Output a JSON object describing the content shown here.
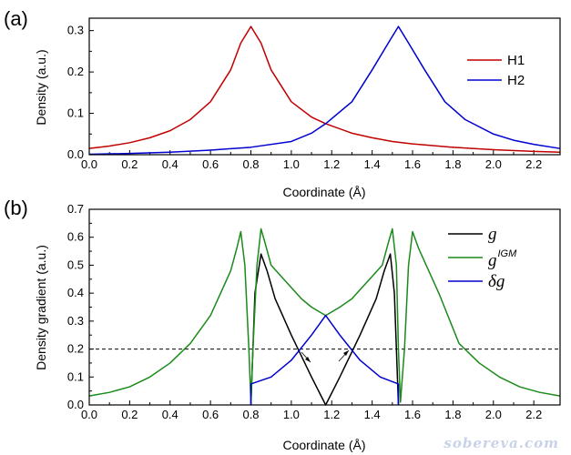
{
  "watermark": "sobereva.com",
  "chart_data": [
    {
      "panel": "(a)",
      "type": "line",
      "xlabel": "Coordinate (Å)",
      "ylabel": "Density (a.u.)",
      "xlim": [
        0.0,
        2.33
      ],
      "ylim": [
        0.0,
        0.33
      ],
      "xticks": [
        0.0,
        0.2,
        0.4,
        0.6,
        0.8,
        1.0,
        1.2,
        1.4,
        1.6,
        1.8,
        2.0,
        2.2
      ],
      "xtick_labels": [
        "0.0",
        "0.2",
        "0.4",
        "0.6",
        "0.8",
        "1.0",
        "1.2",
        "1.4",
        "1.6",
        "1.8",
        "2.0",
        "2.2"
      ],
      "yticks": [
        0.0,
        0.1,
        0.2,
        0.3
      ],
      "ytick_labels": [
        "0.0",
        "0.1",
        "0.2",
        "0.3"
      ],
      "legend": "top-right",
      "series": [
        {
          "name": "H1",
          "color": "#c00000",
          "x": [
            0.0,
            0.1,
            0.2,
            0.3,
            0.4,
            0.5,
            0.6,
            0.7,
            0.75,
            0.8,
            0.85,
            0.9,
            1.0,
            1.1,
            1.17,
            1.3,
            1.4,
            1.5,
            1.6,
            1.8,
            2.0,
            2.2,
            2.33
          ],
          "y": [
            0.015,
            0.021,
            0.029,
            0.041,
            0.058,
            0.085,
            0.128,
            0.205,
            0.27,
            0.31,
            0.27,
            0.205,
            0.128,
            0.091,
            0.075,
            0.052,
            0.041,
            0.032,
            0.026,
            0.018,
            0.012,
            0.008,
            0.006
          ]
        },
        {
          "name": "H2",
          "color": "#0000d0",
          "x": [
            0.0,
            0.2,
            0.4,
            0.6,
            0.8,
            1.0,
            1.1,
            1.17,
            1.3,
            1.4,
            1.48,
            1.53,
            1.58,
            1.66,
            1.76,
            1.86,
            2.0,
            2.1,
            2.2,
            2.33
          ],
          "y": [
            0.001,
            0.003,
            0.006,
            0.011,
            0.018,
            0.032,
            0.052,
            0.075,
            0.128,
            0.205,
            0.27,
            0.31,
            0.27,
            0.205,
            0.128,
            0.085,
            0.05,
            0.035,
            0.025,
            0.015
          ]
        }
      ]
    },
    {
      "panel": "(b)",
      "type": "line",
      "xlabel": "Coordinate (Å)",
      "ylabel": "Density gradient (a.u.)",
      "xlim": [
        0.0,
        2.33
      ],
      "ylim": [
        0.0,
        0.7
      ],
      "xticks": [
        0.0,
        0.2,
        0.4,
        0.6,
        0.8,
        1.0,
        1.2,
        1.4,
        1.6,
        1.8,
        2.0,
        2.2
      ],
      "xtick_labels": [
        "0.0",
        "0.2",
        "0.4",
        "0.6",
        "0.8",
        "1.0",
        "1.2",
        "1.4",
        "1.6",
        "1.8",
        "2.0",
        "2.2"
      ],
      "yticks": [
        0.0,
        0.1,
        0.2,
        0.3,
        0.4,
        0.5,
        0.6,
        0.7
      ],
      "ytick_labels": [
        "0.0",
        "0.1",
        "0.2",
        "0.3",
        "0.4",
        "0.5",
        "0.6",
        "0.7"
      ],
      "legend": "top-right",
      "reference_line": {
        "y": 0.2,
        "style": "dashed"
      },
      "series": [
        {
          "name": "g",
          "color": "#000000",
          "x": [
            0.8,
            0.82,
            0.85,
            0.88,
            0.92,
            1.0,
            1.1,
            1.17,
            1.24,
            1.34,
            1.42,
            1.46,
            1.49,
            1.51,
            1.53
          ],
          "y": [
            0.0,
            0.4,
            0.54,
            0.48,
            0.38,
            0.25,
            0.1,
            0.0,
            0.1,
            0.25,
            0.38,
            0.48,
            0.54,
            0.4,
            0.0
          ]
        },
        {
          "name": "gIGM",
          "color": "#1a8a1a",
          "x": [
            0.0,
            0.1,
            0.2,
            0.3,
            0.4,
            0.5,
            0.6,
            0.65,
            0.7,
            0.73,
            0.75,
            0.77,
            0.79,
            0.8,
            0.81,
            0.83,
            0.85,
            0.87,
            0.9,
            0.95,
            1.0,
            1.05,
            1.1,
            1.17,
            1.24,
            1.3,
            1.35,
            1.4,
            1.45,
            1.48,
            1.5,
            1.52,
            1.53,
            1.54,
            1.56,
            1.58,
            1.6,
            1.63,
            1.68,
            1.73,
            1.83,
            1.93,
            2.03,
            2.13,
            2.23,
            2.33
          ],
          "y": [
            0.032,
            0.045,
            0.065,
            0.1,
            0.15,
            0.22,
            0.32,
            0.4,
            0.48,
            0.56,
            0.62,
            0.5,
            0.2,
            0.01,
            0.2,
            0.5,
            0.63,
            0.58,
            0.5,
            0.46,
            0.42,
            0.38,
            0.35,
            0.32,
            0.35,
            0.38,
            0.42,
            0.46,
            0.5,
            0.58,
            0.63,
            0.5,
            0.2,
            0.01,
            0.2,
            0.5,
            0.62,
            0.56,
            0.48,
            0.4,
            0.22,
            0.15,
            0.1,
            0.065,
            0.045,
            0.032
          ]
        },
        {
          "name": "δg",
          "color": "#0000d0",
          "x": [
            0.8,
            0.8,
            0.9,
            1.0,
            1.1,
            1.17,
            1.24,
            1.34,
            1.44,
            1.53,
            1.53
          ],
          "y": [
            0.0,
            0.075,
            0.1,
            0.16,
            0.25,
            0.32,
            0.25,
            0.16,
            0.1,
            0.075,
            0.0
          ]
        }
      ]
    }
  ]
}
